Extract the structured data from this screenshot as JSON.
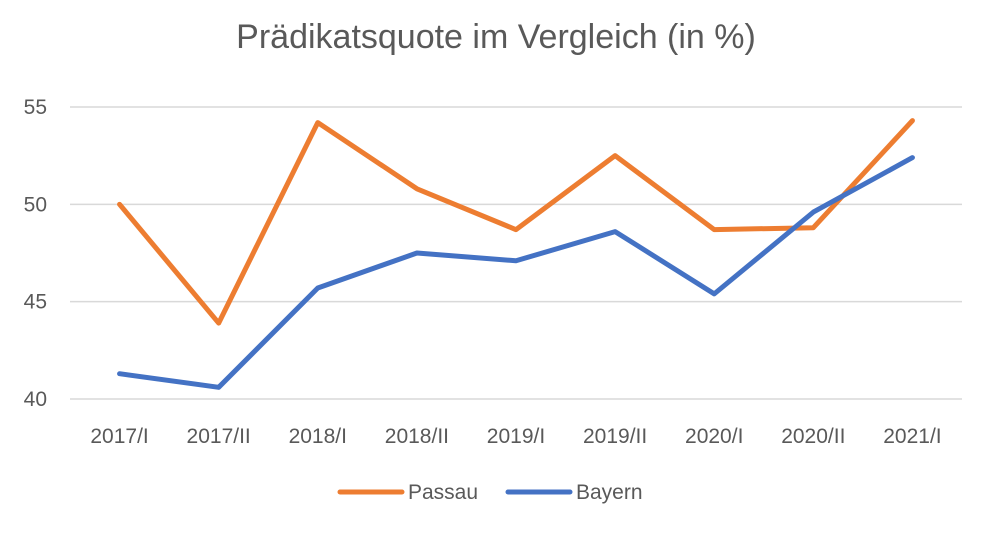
{
  "chart_data": {
    "type": "line",
    "title": "Prädikatsquote im Vergleich (in %)",
    "categories": [
      "2017/I",
      "2017/II",
      "2018/I",
      "2018/II",
      "2019/I",
      "2019/II",
      "2020/I",
      "2020/II",
      "2021/I"
    ],
    "series": [
      {
        "name": "Passau",
        "color": "#ED7D31",
        "values": [
          50.0,
          43.9,
          54.2,
          50.8,
          48.7,
          52.5,
          48.7,
          48.8,
          54.3
        ]
      },
      {
        "name": "Bayern",
        "color": "#4472C4",
        "values": [
          41.3,
          40.6,
          45.7,
          47.5,
          47.1,
          48.6,
          45.4,
          49.6,
          52.4
        ]
      }
    ],
    "ylim": [
      40,
      55
    ],
    "yticks": [
      40,
      45,
      50,
      55
    ],
    "grid": true,
    "legend_position": "bottom"
  }
}
